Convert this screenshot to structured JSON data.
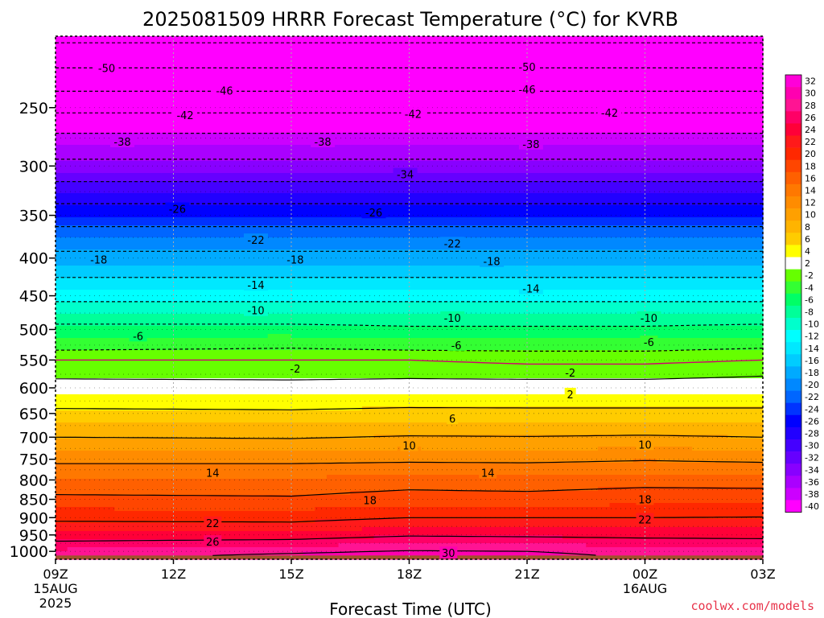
{
  "chart_data": {
    "type": "heatmap",
    "title": "2025081509 HRRR Forecast Temperature (°C) for KVRB",
    "xlabel": "Forecast Time (UTC)",
    "ylabel": "",
    "credit": "coolwx.com/models",
    "x_ticks": [
      {
        "hour": 0,
        "label": "09Z",
        "sub1": "15AUG",
        "sub2": "2025"
      },
      {
        "hour": 3,
        "label": "12Z"
      },
      {
        "hour": 6,
        "label": "15Z"
      },
      {
        "hour": 9,
        "label": "18Z"
      },
      {
        "hour": 12,
        "label": "21Z"
      },
      {
        "hour": 15,
        "label": "00Z",
        "sub1": "16AUG"
      },
      {
        "hour": 18,
        "label": "03Z"
      }
    ],
    "xlim": [
      0,
      18
    ],
    "y_ticks": [
      250,
      300,
      350,
      400,
      450,
      500,
      550,
      600,
      650,
      700,
      750,
      800,
      850,
      900,
      950,
      1000
    ],
    "ylim": [
      200,
      1025
    ],
    "y_scale": "log",
    "colorbar_levels": [
      32,
      30,
      28,
      26,
      24,
      22,
      20,
      18,
      16,
      14,
      12,
      10,
      8,
      6,
      4,
      2,
      -2,
      -4,
      -6,
      -8,
      -10,
      -12,
      -14,
      -16,
      -18,
      -20,
      -22,
      -24,
      -26,
      -28,
      -30,
      -32,
      -34,
      -36,
      -38,
      -40
    ],
    "colorbar_colors": [
      "#ff00d8",
      "#ff00b0",
      "#ff1493",
      "#ff0066",
      "#ff0038",
      "#ff1a1a",
      "#ff2800",
      "#ff4600",
      "#ff6000",
      "#ff7800",
      "#ff8c00",
      "#ffa000",
      "#ffb400",
      "#ffcc00",
      "#ffff00",
      "#ffffff",
      "#66ff00",
      "#33ff33",
      "#00ff66",
      "#00ff99",
      "#00ffcc",
      "#00ffff",
      "#00e8ff",
      "#00ccff",
      "#00aaff",
      "#0088ff",
      "#0066ff",
      "#0033ff",
      "#0000ff",
      "#2200ff",
      "#4400ff",
      "#6600ff",
      "#8800ff",
      "#aa00ff",
      "#cc00ff",
      "#ff00ff"
    ],
    "ground_color": "#a0522d",
    "profiles": [
      {
        "hour": 0,
        "temps": {
          "200": -55,
          "225": -49,
          "250": -43,
          "275": -37,
          "300": -33,
          "325": -28,
          "350": -24,
          "375": -20,
          "400": -17,
          "425": -14,
          "450": -11,
          "475": -8,
          "500": -5,
          "525": -3,
          "550": 0,
          "575": 1.5,
          "600": 3,
          "625": 4.8,
          "650": 6.8,
          "675": 8.4,
          "700": 10,
          "725": 11.7,
          "750": 13.3,
          "775": 15,
          "800": 16.3,
          "825": 17.5,
          "850": 18.5,
          "875": 20,
          "900": 21.3,
          "925": 23,
          "950": 24.5,
          "975": 26.5,
          "1000": 28.5,
          "1013": 29
        }
      },
      {
        "hour": 6,
        "temps": {
          "200": -55,
          "225": -49,
          "250": -43,
          "275": -37,
          "300": -33,
          "325": -28,
          "350": -24,
          "375": -20,
          "400": -17,
          "425": -14,
          "450": -11,
          "475": -8,
          "500": -5,
          "525": -2.5,
          "550": 0,
          "575": 1.3,
          "600": 3,
          "625": 4.8,
          "650": 6.5,
          "675": 8.2,
          "700": 9.8,
          "725": 11.5,
          "750": 13.3,
          "775": 15,
          "800": 16.2,
          "825": 17.4,
          "850": 18.3,
          "875": 19.8,
          "900": 21.2,
          "925": 22.8,
          "950": 24.8,
          "975": 27,
          "1000": 29.5,
          "1013": 30.5
        }
      },
      {
        "hour": 9,
        "temps": {
          "200": -55,
          "225": -49,
          "250": -43,
          "275": -37,
          "300": -33,
          "325": -28,
          "350": -24,
          "375": -20,
          "400": -17,
          "425": -14,
          "450": -11,
          "475": -8,
          "500": -5.5,
          "525": -3,
          "550": 0,
          "575": 1.5,
          "600": 3.1,
          "625": 5,
          "650": 6.9,
          "675": 8.5,
          "700": 10.2,
          "725": 12,
          "750": 13.5,
          "775": 15.3,
          "800": 16.8,
          "825": 18,
          "850": 19,
          "875": 20.5,
          "900": 22,
          "925": 23.7,
          "950": 25.7,
          "975": 28,
          "1000": 30.2,
          "1013": 31
        }
      },
      {
        "hour": 12,
        "temps": {
          "200": -55,
          "225": -49,
          "250": -43,
          "275": -37,
          "300": -33,
          "325": -28,
          "350": -24,
          "375": -20,
          "400": -17,
          "425": -14,
          "450": -11,
          "475": -8,
          "500": -5.5,
          "525": -3,
          "550": -0.5,
          "575": 1.3,
          "600": 3.2,
          "625": 5,
          "650": 6.8,
          "675": 8.5,
          "700": 10.1,
          "725": 11.8,
          "750": 13.4,
          "775": 15.2,
          "800": 16.6,
          "825": 17.8,
          "850": 19,
          "875": 20.5,
          "900": 22,
          "925": 23.7,
          "950": 25.5,
          "975": 27.8,
          "1000": 30,
          "1013": 30.8
        }
      },
      {
        "hour": 15,
        "temps": {
          "200": -55,
          "225": -49,
          "250": -43,
          "275": -37,
          "300": -33,
          "325": -28,
          "350": -24,
          "375": -20,
          "400": -17,
          "425": -14,
          "450": -11,
          "475": -8,
          "500": -5.5,
          "525": -3,
          "550": -0.5,
          "575": 1.3,
          "600": 3.2,
          "625": 5,
          "650": 6.8,
          "675": 8.6,
          "700": 10.3,
          "725": 12.1,
          "750": 13.8,
          "775": 15.5,
          "800": 17,
          "825": 18.3,
          "850": 19.2,
          "875": 20.6,
          "900": 22,
          "925": 23.6,
          "950": 25.3,
          "975": 27.2,
          "1000": 29,
          "1013": 29.5
        }
      },
      {
        "hour": 18,
        "temps": {
          "200": -55,
          "225": -49,
          "250": -43,
          "275": -37,
          "300": -33,
          "325": -28,
          "350": -24,
          "375": -20,
          "400": -17,
          "425": -14,
          "450": -11,
          "475": -8,
          "500": -5,
          "525": -2.5,
          "550": 0,
          "575": 1.8,
          "600": 3.3,
          "625": 5,
          "650": 6.8,
          "675": 8.5,
          "700": 10,
          "725": 11.8,
          "750": 13.5,
          "775": 15.2,
          "800": 16.8,
          "825": 18.2,
          "850": 19.3,
          "875": 20.7,
          "900": 22.1,
          "925": 23.8,
          "950": 25.2,
          "975": 27,
          "1000": 28.5,
          "1013": 29
        }
      }
    ],
    "contour_labels": [
      {
        "hour": 1.3,
        "p": 221,
        "text": "-50"
      },
      {
        "hour": 12.0,
        "p": 220,
        "text": "-50"
      },
      {
        "hour": 4.3,
        "p": 237,
        "text": "-46"
      },
      {
        "hour": 12.0,
        "p": 236,
        "text": "-46"
      },
      {
        "hour": 3.3,
        "p": 256,
        "text": "-42"
      },
      {
        "hour": 9.1,
        "p": 255,
        "text": "-42"
      },
      {
        "hour": 14.1,
        "p": 254,
        "text": "-42"
      },
      {
        "hour": 1.7,
        "p": 278,
        "text": "-38"
      },
      {
        "hour": 6.8,
        "p": 278,
        "text": "-38"
      },
      {
        "hour": 12.1,
        "p": 280,
        "text": "-38"
      },
      {
        "hour": 8.9,
        "p": 308,
        "text": "-34"
      },
      {
        "hour": 3.1,
        "p": 343,
        "text": "-26"
      },
      {
        "hour": 8.1,
        "p": 347,
        "text": "-26"
      },
      {
        "hour": 5.1,
        "p": 378,
        "text": "-22"
      },
      {
        "hour": 10.1,
        "p": 382,
        "text": "-22"
      },
      {
        "hour": 1.1,
        "p": 402,
        "text": "-18"
      },
      {
        "hour": 6.1,
        "p": 402,
        "text": "-18"
      },
      {
        "hour": 11.1,
        "p": 404,
        "text": "-18"
      },
      {
        "hour": 5.1,
        "p": 435,
        "text": "-14"
      },
      {
        "hour": 12.1,
        "p": 440,
        "text": "-14"
      },
      {
        "hour": 5.1,
        "p": 471,
        "text": "-10"
      },
      {
        "hour": 10.1,
        "p": 482,
        "text": "-10"
      },
      {
        "hour": 15.1,
        "p": 482,
        "text": "-10"
      },
      {
        "hour": 2.1,
        "p": 510,
        "text": "-6"
      },
      {
        "hour": 10.2,
        "p": 525,
        "text": "-6"
      },
      {
        "hour": 15.1,
        "p": 520,
        "text": "-6"
      },
      {
        "hour": 6.1,
        "p": 565,
        "text": "-2"
      },
      {
        "hour": 13.1,
        "p": 572,
        "text": "-2"
      },
      {
        "hour": 13.1,
        "p": 612,
        "text": "2"
      },
      {
        "hour": 10.1,
        "p": 660,
        "text": "6"
      },
      {
        "hour": 9.0,
        "p": 718,
        "text": "10"
      },
      {
        "hour": 15.0,
        "p": 716,
        "text": "10"
      },
      {
        "hour": 4.0,
        "p": 782,
        "text": "14"
      },
      {
        "hour": 11.0,
        "p": 782,
        "text": "14"
      },
      {
        "hour": 8.0,
        "p": 852,
        "text": "18"
      },
      {
        "hour": 15.0,
        "p": 850,
        "text": "18"
      },
      {
        "hour": 4.0,
        "p": 915,
        "text": "22"
      },
      {
        "hour": 15.0,
        "p": 905,
        "text": "22"
      },
      {
        "hour": 4.0,
        "p": 970,
        "text": "26"
      },
      {
        "hour": 10.0,
        "p": 1005,
        "text": "30"
      }
    ]
  }
}
